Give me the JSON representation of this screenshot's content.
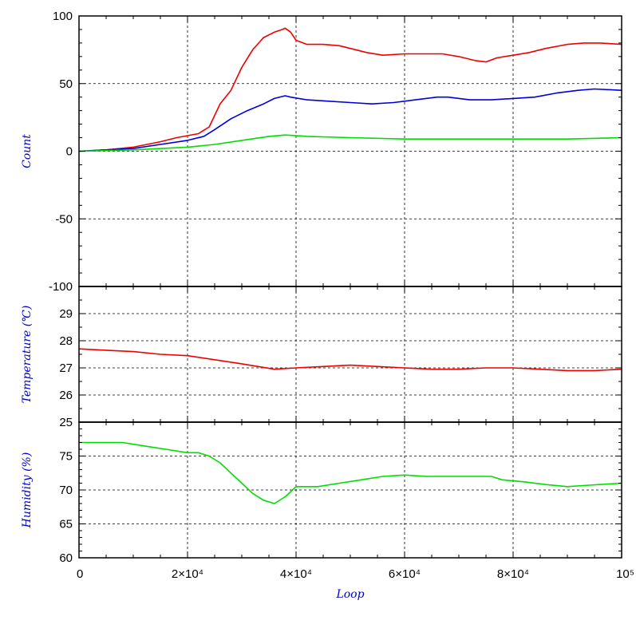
{
  "chart_data": [
    {
      "type": "line",
      "panel": "count",
      "ylabel": "Count",
      "ylim": [
        -100,
        100
      ],
      "yticks": [
        -100,
        -50,
        0,
        50,
        100
      ],
      "ytick_labels": [
        "-100",
        "-50",
        "0",
        "50",
        "100"
      ],
      "grid": true,
      "series": [
        {
          "color": "#ee0000",
          "x": [
            0,
            5000,
            10000,
            15000,
            18000,
            22000,
            24000,
            26000,
            28000,
            30000,
            32000,
            34000,
            36000,
            37500,
            38000,
            39000,
            40000,
            42000,
            45000,
            48000,
            50000,
            53000,
            56000,
            60000,
            63000,
            67000,
            70000,
            73000,
            75000,
            77000,
            80000,
            83000,
            86000,
            90000,
            93000,
            96000,
            100000
          ],
          "y": [
            0,
            1,
            3,
            7,
            10,
            13,
            18,
            35,
            45,
            62,
            75,
            84,
            88,
            90,
            91,
            88,
            82,
            79,
            79,
            78,
            76,
            73,
            71,
            72,
            72,
            72,
            70,
            67,
            66,
            69,
            71,
            73,
            76,
            79,
            80,
            80,
            79
          ]
        },
        {
          "color": "#0000dd",
          "x": [
            0,
            5000,
            10000,
            15000,
            20000,
            23000,
            25000,
            28000,
            31000,
            34000,
            36000,
            38000,
            39000,
            42000,
            46000,
            50000,
            54000,
            58000,
            62000,
            66000,
            68000,
            72000,
            76000,
            80000,
            84000,
            88000,
            92000,
            95000,
            100000
          ],
          "y": [
            0,
            1,
            2,
            5,
            8,
            11,
            16,
            24,
            30,
            35,
            39,
            41,
            40,
            38,
            37,
            36,
            35,
            36,
            38,
            40,
            40,
            38,
            38,
            39,
            40,
            43,
            45,
            46,
            45
          ]
        },
        {
          "color": "#00dd00",
          "x": [
            0,
            10000,
            20000,
            25000,
            30000,
            35000,
            38000,
            42000,
            50000,
            60000,
            70000,
            80000,
            90000,
            100000
          ],
          "y": [
            0,
            1,
            3,
            5,
            8,
            11,
            12,
            11,
            10,
            9,
            9,
            9,
            9,
            10
          ]
        }
      ]
    },
    {
      "type": "line",
      "panel": "temperature",
      "ylabel": "Temperature (℃)",
      "ylim": [
        25,
        30
      ],
      "yticks": [
        25,
        26,
        27,
        28,
        29,
        30
      ],
      "ytick_labels": [
        "25",
        "26",
        "27",
        "28",
        "29",
        ""
      ],
      "grid": true,
      "series": [
        {
          "color": "#ee0000",
          "x": [
            0,
            5000,
            10000,
            15000,
            20000,
            25000,
            30000,
            33000,
            36000,
            40000,
            45000,
            50000,
            55000,
            60000,
            65000,
            70000,
            75000,
            80000,
            85000,
            90000,
            95000,
            100000
          ],
          "y": [
            27.7,
            27.65,
            27.6,
            27.5,
            27.45,
            27.3,
            27.15,
            27.05,
            26.95,
            27.0,
            27.05,
            27.1,
            27.05,
            27.0,
            26.95,
            26.95,
            27.0,
            27.0,
            26.95,
            26.9,
            26.9,
            26.95
          ]
        }
      ]
    },
    {
      "type": "line",
      "panel": "humidity",
      "ylabel": "Humidity (%)",
      "xlabel": "Loop",
      "ylim": [
        60,
        80
      ],
      "xlim": [
        0,
        100000
      ],
      "yticks": [
        60,
        65,
        70,
        75,
        80
      ],
      "ytick_labels": [
        "60",
        "65",
        "70",
        "75",
        ""
      ],
      "xticks": [
        0,
        20000,
        40000,
        60000,
        80000,
        100000
      ],
      "xtick_labels": [
        "0",
        "2×10⁴",
        "4×10⁴",
        "6×10⁴",
        "8×10⁴",
        "10⁵"
      ],
      "grid": true,
      "series": [
        {
          "color": "#00dd00",
          "x": [
            0,
            8000,
            12000,
            16000,
            20000,
            22000,
            24000,
            26000,
            28000,
            30000,
            32000,
            34000,
            36000,
            38000,
            40000,
            44000,
            48000,
            52000,
            56000,
            60000,
            64000,
            68000,
            72000,
            76000,
            78000,
            82000,
            86000,
            90000,
            94000,
            100000
          ],
          "y": [
            77.0,
            77.0,
            76.5,
            76.0,
            75.5,
            75.5,
            75.0,
            74.0,
            72.5,
            71.0,
            69.5,
            68.5,
            68.0,
            69.0,
            70.5,
            70.5,
            71.0,
            71.5,
            72.0,
            72.2,
            72.0,
            72.0,
            72.0,
            72.0,
            71.5,
            71.2,
            70.8,
            70.5,
            70.7,
            71.0
          ]
        }
      ]
    }
  ]
}
